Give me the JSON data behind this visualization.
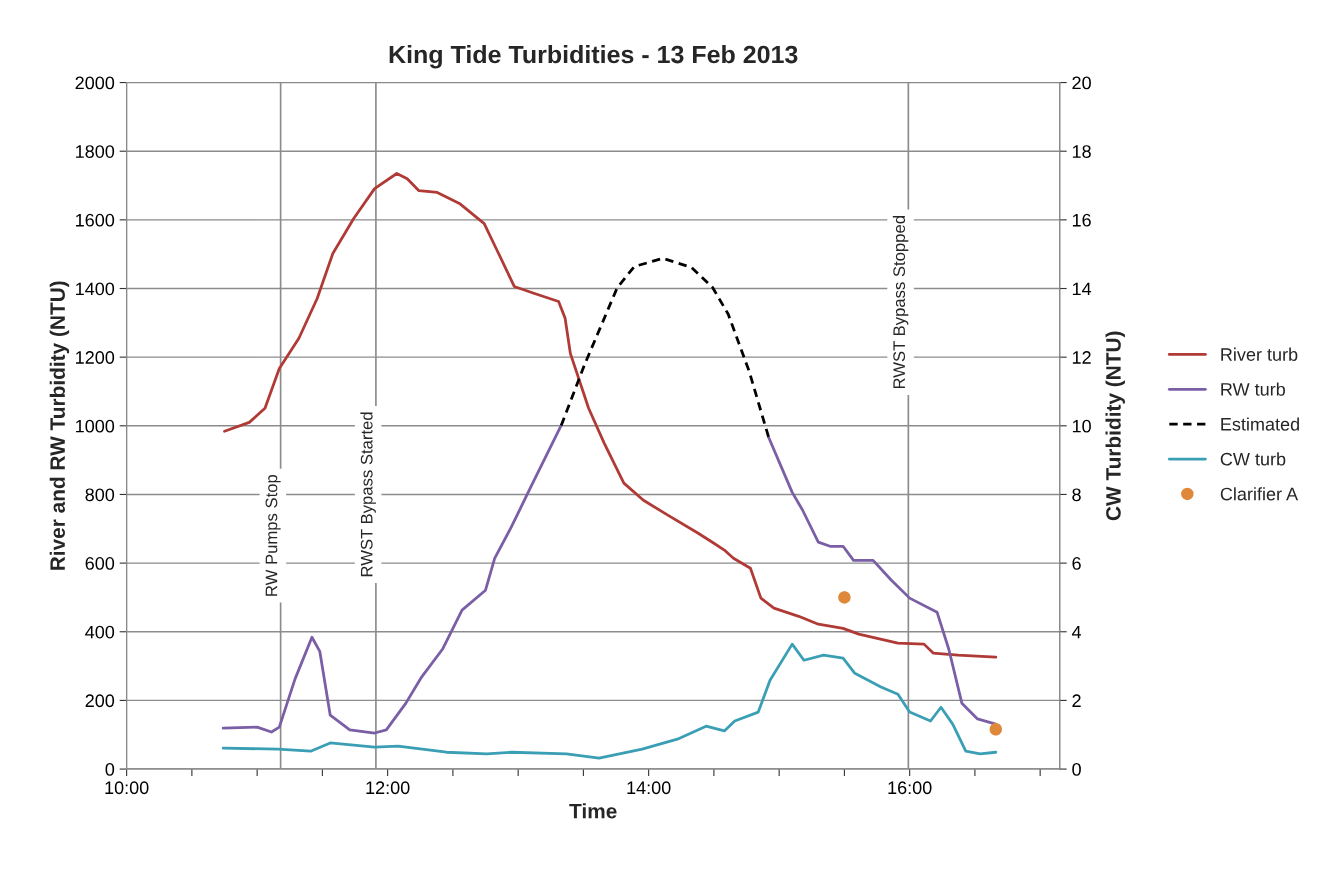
{
  "chart_data": {
    "type": "line",
    "title": "King Tide Turbidities - 13 Feb 2013",
    "xlabel": "Time",
    "ylabel": "River and RW Turbidity (NTU)",
    "y2label": "CW Turbidity (NTU)",
    "xlim": [
      10,
      17.15
    ],
    "xticks": [
      {
        "value": 10,
        "label": "10:00"
      },
      {
        "value": 10.5,
        "label": null
      },
      {
        "value": 11,
        "label": null
      },
      {
        "value": 11.5,
        "label": null
      },
      {
        "value": 12,
        "label": "12:00"
      },
      {
        "value": 12.5,
        "label": null
      },
      {
        "value": 13,
        "label": null
      },
      {
        "value": 13.5,
        "label": null
      },
      {
        "value": 14,
        "label": "14:00"
      },
      {
        "value": 14.5,
        "label": null
      },
      {
        "value": 15,
        "label": null
      },
      {
        "value": 15.5,
        "label": null
      },
      {
        "value": 16,
        "label": "16:00"
      },
      {
        "value": 16.5,
        "label": null
      },
      {
        "value": 17,
        "label": null
      }
    ],
    "ylim": [
      0,
      2000
    ],
    "yticks": [
      0,
      200,
      400,
      600,
      800,
      1000,
      1200,
      1400,
      1600,
      1800,
      2000
    ],
    "y2lim": [
      0,
      20
    ],
    "y2ticks": [
      0,
      2,
      4,
      6,
      8,
      10,
      12,
      14,
      16,
      18,
      20
    ],
    "grid": "y",
    "legend": "right",
    "marker": "none",
    "line_style": "solid",
    "ref_lines": [
      {
        "axis": "x",
        "value": 11.18,
        "label": "RW Pumps Stop",
        "color": "#8c8c8c"
      },
      {
        "axis": "x",
        "value": 11.91,
        "label": "RWST Bypass Started",
        "color": "#8c8c8c"
      },
      {
        "axis": "x",
        "value": 15.99,
        "label": "RWST Bypass Stopped",
        "color": "#8c8c8c"
      }
    ],
    "series": [
      {
        "name": "River turb",
        "color": "#b03a36",
        "x": [
          10.75,
          10.94,
          11.06,
          11.17,
          11.32,
          11.46,
          11.58,
          11.74,
          11.9,
          12.07,
          12.15,
          12.24,
          12.38,
          12.55,
          12.74,
          12.85,
          12.97,
          13.12,
          13.31,
          13.36,
          13.4,
          13.54,
          13.66,
          13.81,
          13.96,
          14.15,
          14.38,
          14.5,
          14.58,
          14.65,
          14.78,
          14.86,
          14.96,
          15.15,
          15.3,
          15.49,
          15.61,
          15.91,
          16.11,
          16.18,
          16.37,
          16.66
        ],
        "values": [
          984,
          1010,
          1051,
          1167,
          1255,
          1371,
          1502,
          1604,
          1691,
          1735,
          1720,
          1685,
          1680,
          1648,
          1589,
          1502,
          1406,
          1386,
          1362,
          1313,
          1211,
          1051,
          949,
          833,
          783,
          739,
          687,
          658,
          638,
          614,
          585,
          498,
          469,
          445,
          422,
          410,
          393,
          367,
          364,
          338,
          332,
          326
        ]
      },
      {
        "name": "RW turb",
        "color": "#7a5ea6",
        "x": [
          10.74,
          11.0,
          11.11,
          11.17,
          11.29,
          11.42,
          11.48,
          11.56,
          11.71,
          11.9,
          11.99,
          12.14,
          12.26,
          12.42,
          12.57,
          12.75,
          12.82,
          12.95,
          13.1,
          13.33,
          null,
          14.92,
          15.1,
          15.18,
          15.3,
          15.39,
          15.49,
          15.57,
          15.72,
          15.86,
          16.0,
          16.21,
          16.3,
          16.4,
          16.52,
          16.66
        ],
        "values": [
          119,
          122,
          108,
          122,
          262,
          384,
          343,
          157,
          114,
          105,
          114,
          192,
          268,
          349,
          463,
          521,
          614,
          707,
          824,
          1001,
          null,
          966,
          806,
          754,
          661,
          649,
          649,
          608,
          608,
          550,
          498,
          457,
          349,
          192,
          146,
          131
        ]
      },
      {
        "name": "Estimated",
        "color": "#000000",
        "line_style": "dashed",
        "x": [
          13.33,
          13.51,
          13.76,
          13.89,
          14.11,
          14.33,
          14.49,
          14.61,
          14.77,
          14.92
        ],
        "values": [
          1001,
          1179,
          1403,
          1464,
          1488,
          1461,
          1403,
          1325,
          1159,
          966
        ]
      },
      {
        "name": "CW turb",
        "color": "#3a9fb5",
        "axis": "y2",
        "x": [
          10.74,
          11.16,
          11.41,
          11.56,
          11.9,
          12.08,
          12.45,
          12.76,
          12.95,
          13.37,
          13.62,
          13.95,
          14.22,
          14.44,
          14.58,
          14.66,
          14.84,
          14.93,
          15.1,
          15.19,
          15.34,
          15.49,
          15.58,
          15.78,
          15.91,
          16.0,
          16.16,
          16.24,
          16.33,
          16.43,
          16.54,
          16.66
        ],
        "values": [
          0.61,
          0.58,
          0.52,
          0.76,
          0.64,
          0.67,
          0.49,
          0.44,
          0.49,
          0.44,
          0.32,
          0.58,
          0.87,
          1.25,
          1.11,
          1.4,
          1.66,
          2.59,
          3.64,
          3.17,
          3.32,
          3.23,
          2.79,
          2.39,
          2.18,
          1.66,
          1.4,
          1.8,
          1.31,
          0.52,
          0.44,
          0.49
        ]
      },
      {
        "name": "Clarifier A",
        "color": "#e0883a",
        "type": "scatter",
        "marker": "circle",
        "axis": "y2",
        "x": [
          15.5,
          16.66
        ],
        "values": [
          5.0,
          1.16
        ]
      }
    ]
  }
}
